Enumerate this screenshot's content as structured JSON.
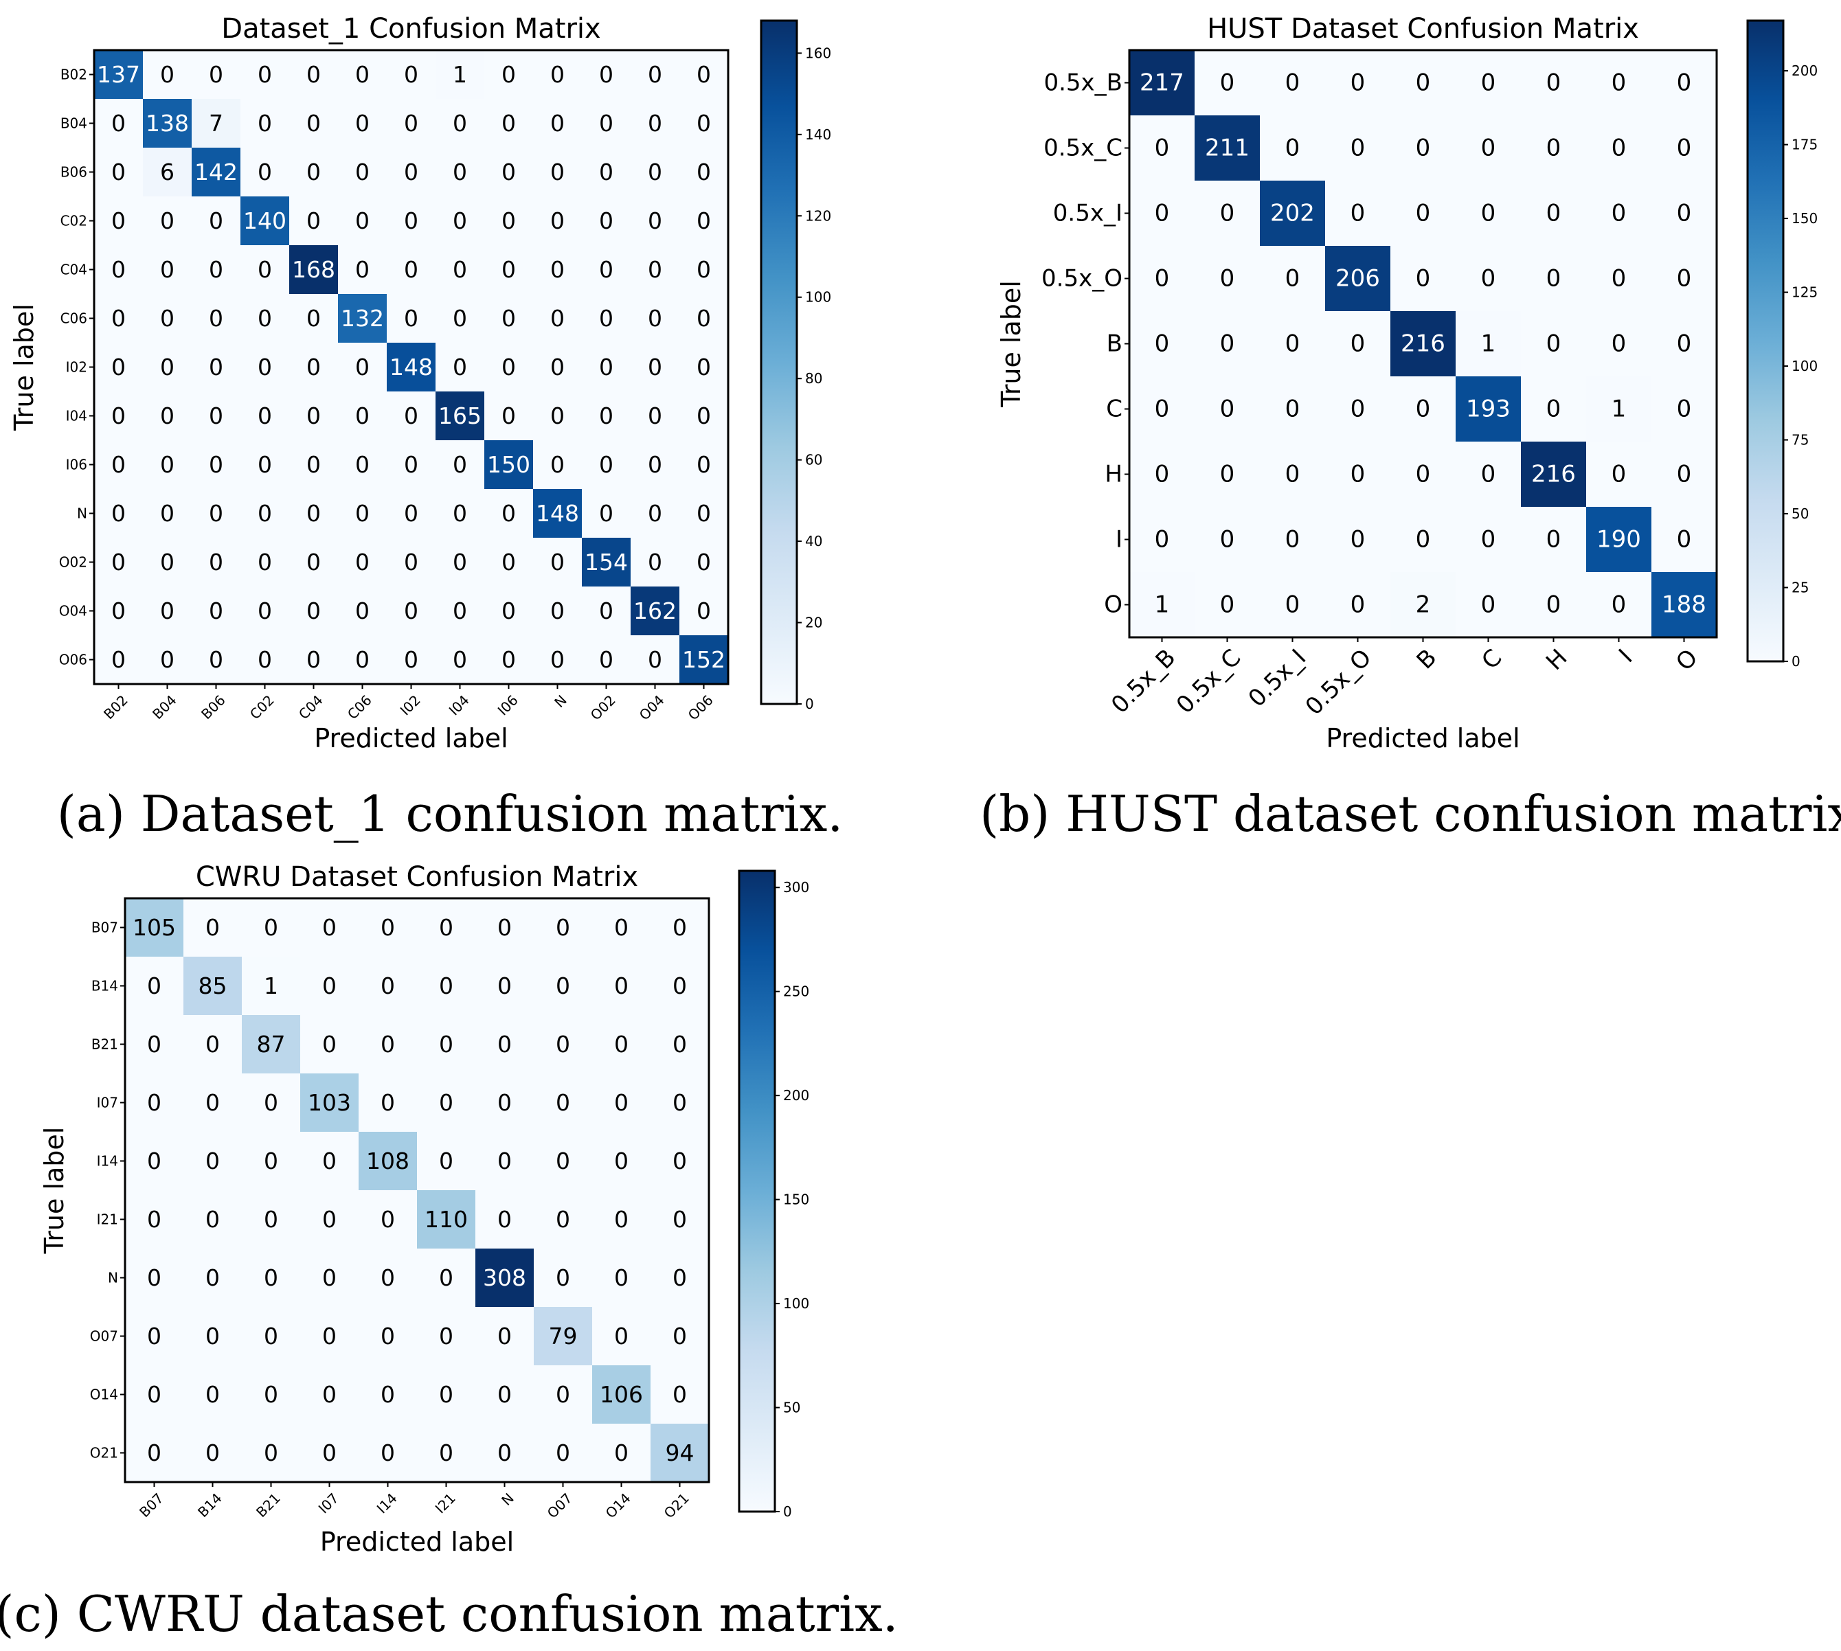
{
  "figures": [
    {
      "id": "a",
      "caption": "(a) Dataset_1 confusion matrix.",
      "chart_data": {
        "type": "heatmap",
        "title": "Dataset_1 Confusion Matrix",
        "xlabel": "Predicted label",
        "ylabel": "True label",
        "labels": [
          "B02",
          "B04",
          "B06",
          "C02",
          "C04",
          "C06",
          "I02",
          "I04",
          "I06",
          "N",
          "O02",
          "O04",
          "O06"
        ],
        "matrix": [
          [
            137,
            0,
            0,
            0,
            0,
            0,
            0,
            1,
            0,
            0,
            0,
            0,
            0
          ],
          [
            0,
            138,
            7,
            0,
            0,
            0,
            0,
            0,
            0,
            0,
            0,
            0,
            0
          ],
          [
            0,
            6,
            142,
            0,
            0,
            0,
            0,
            0,
            0,
            0,
            0,
            0,
            0
          ],
          [
            0,
            0,
            0,
            140,
            0,
            0,
            0,
            0,
            0,
            0,
            0,
            0,
            0
          ],
          [
            0,
            0,
            0,
            0,
            168,
            0,
            0,
            0,
            0,
            0,
            0,
            0,
            0
          ],
          [
            0,
            0,
            0,
            0,
            0,
            132,
            0,
            0,
            0,
            0,
            0,
            0,
            0
          ],
          [
            0,
            0,
            0,
            0,
            0,
            0,
            148,
            0,
            0,
            0,
            0,
            0,
            0
          ],
          [
            0,
            0,
            0,
            0,
            0,
            0,
            0,
            165,
            0,
            0,
            0,
            0,
            0
          ],
          [
            0,
            0,
            0,
            0,
            0,
            0,
            0,
            0,
            150,
            0,
            0,
            0,
            0
          ],
          [
            0,
            0,
            0,
            0,
            0,
            0,
            0,
            0,
            0,
            148,
            0,
            0,
            0
          ],
          [
            0,
            0,
            0,
            0,
            0,
            0,
            0,
            0,
            0,
            0,
            154,
            0,
            0
          ],
          [
            0,
            0,
            0,
            0,
            0,
            0,
            0,
            0,
            0,
            0,
            0,
            162,
            0
          ],
          [
            0,
            0,
            0,
            0,
            0,
            0,
            0,
            0,
            0,
            0,
            0,
            0,
            152
          ]
        ],
        "colorbar": {
          "vmin": 0,
          "vmax": 168,
          "ticks": [
            0,
            20,
            40,
            60,
            80,
            100,
            120,
            140,
            160
          ]
        },
        "colormap": [
          "#f7fbff",
          "#deebf7",
          "#c6dbef",
          "#9ecae1",
          "#6baed6",
          "#4292c6",
          "#2171b5",
          "#08519c",
          "#08306b"
        ]
      }
    },
    {
      "id": "b",
      "caption": "(b) HUST dataset confusion matrix.",
      "chart_data": {
        "type": "heatmap",
        "title": "HUST Dataset Confusion Matrix",
        "xlabel": "Predicted label",
        "ylabel": "True label",
        "labels": [
          "0.5x_B",
          "0.5x_C",
          "0.5x_I",
          "0.5x_O",
          "B",
          "C",
          "H",
          "I",
          "O"
        ],
        "matrix": [
          [
            217,
            0,
            0,
            0,
            0,
            0,
            0,
            0,
            0
          ],
          [
            0,
            211,
            0,
            0,
            0,
            0,
            0,
            0,
            0
          ],
          [
            0,
            0,
            202,
            0,
            0,
            0,
            0,
            0,
            0
          ],
          [
            0,
            0,
            0,
            206,
            0,
            0,
            0,
            0,
            0
          ],
          [
            0,
            0,
            0,
            0,
            216,
            1,
            0,
            0,
            0
          ],
          [
            0,
            0,
            0,
            0,
            0,
            193,
            0,
            1,
            0
          ],
          [
            0,
            0,
            0,
            0,
            0,
            0,
            216,
            0,
            0
          ],
          [
            0,
            0,
            0,
            0,
            0,
            0,
            0,
            190,
            0
          ],
          [
            1,
            0,
            0,
            0,
            2,
            0,
            0,
            0,
            188
          ]
        ],
        "colorbar": {
          "vmin": 0,
          "vmax": 217,
          "ticks": [
            0,
            25,
            50,
            75,
            100,
            125,
            150,
            175,
            200
          ]
        },
        "colormap": [
          "#f7fbff",
          "#deebf7",
          "#c6dbef",
          "#9ecae1",
          "#6baed6",
          "#4292c6",
          "#2171b5",
          "#08519c",
          "#08306b"
        ]
      }
    },
    {
      "id": "c",
      "caption": "(c) CWRU dataset confusion matrix.",
      "chart_data": {
        "type": "heatmap",
        "title": "CWRU Dataset Confusion Matrix",
        "xlabel": "Predicted label",
        "ylabel": "True label",
        "labels": [
          "B07",
          "B14",
          "B21",
          "I07",
          "I14",
          "I21",
          "N",
          "O07",
          "O14",
          "O21"
        ],
        "matrix": [
          [
            105,
            0,
            0,
            0,
            0,
            0,
            0,
            0,
            0,
            0
          ],
          [
            0,
            85,
            1,
            0,
            0,
            0,
            0,
            0,
            0,
            0
          ],
          [
            0,
            0,
            87,
            0,
            0,
            0,
            0,
            0,
            0,
            0
          ],
          [
            0,
            0,
            0,
            103,
            0,
            0,
            0,
            0,
            0,
            0
          ],
          [
            0,
            0,
            0,
            0,
            108,
            0,
            0,
            0,
            0,
            0
          ],
          [
            0,
            0,
            0,
            0,
            0,
            110,
            0,
            0,
            0,
            0
          ],
          [
            0,
            0,
            0,
            0,
            0,
            0,
            308,
            0,
            0,
            0
          ],
          [
            0,
            0,
            0,
            0,
            0,
            0,
            0,
            79,
            0,
            0
          ],
          [
            0,
            0,
            0,
            0,
            0,
            0,
            0,
            0,
            106,
            0
          ],
          [
            0,
            0,
            0,
            0,
            0,
            0,
            0,
            0,
            0,
            94
          ]
        ],
        "colorbar": {
          "vmin": 0,
          "vmax": 308,
          "ticks": [
            0,
            50,
            100,
            150,
            200,
            250,
            300
          ]
        },
        "colormap": [
          "#f7fbff",
          "#deebf7",
          "#c6dbef",
          "#9ecae1",
          "#6baed6",
          "#4292c6",
          "#2171b5",
          "#08519c",
          "#08306b"
        ]
      }
    }
  ]
}
